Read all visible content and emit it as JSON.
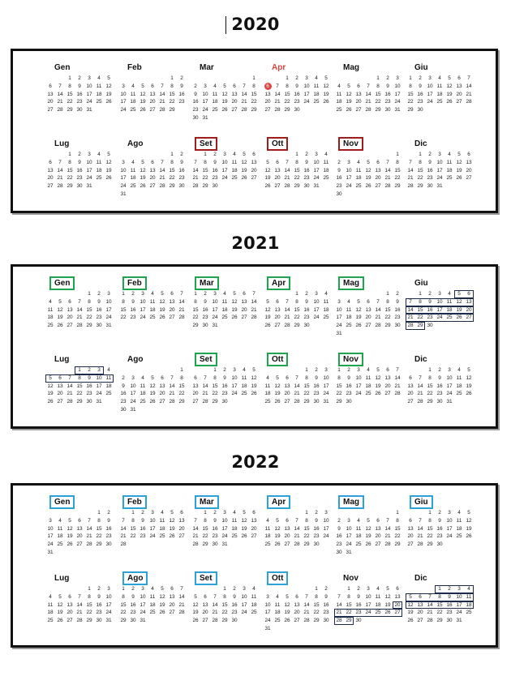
{
  "years": [
    {
      "year": "2020",
      "months": [
        {
          "name": "Gen",
          "style": "plain",
          "lead": 2,
          "days": 31
        },
        {
          "name": "Feb",
          "style": "plain",
          "lead": 5,
          "days": 29
        },
        {
          "name": "Mar",
          "style": "plain",
          "lead": 6,
          "days": 31
        },
        {
          "name": "Apr",
          "style": "text-red",
          "lead": 2,
          "days": 30,
          "today": 6
        },
        {
          "name": "Mag",
          "style": "plain",
          "lead": 4,
          "days": 31
        },
        {
          "name": "Giu",
          "style": "plain",
          "lead": 0,
          "days": 30
        },
        {
          "name": "Lug",
          "style": "plain",
          "lead": 2,
          "days": 31
        },
        {
          "name": "Ago",
          "style": "plain",
          "lead": 5,
          "days": 31
        },
        {
          "name": "Set",
          "style": "red",
          "lead": 1,
          "days": 30
        },
        {
          "name": "Ott",
          "style": "red",
          "lead": 3,
          "days": 31
        },
        {
          "name": "Nov",
          "style": "red",
          "lead": 6,
          "days": 30
        },
        {
          "name": "Dic",
          "style": "plain",
          "lead": 1,
          "days": 31
        }
      ]
    },
    {
      "year": "2021",
      "months": [
        {
          "name": "Gen",
          "style": "green",
          "lead": 4,
          "days": 31
        },
        {
          "name": "Feb",
          "style": "green",
          "lead": 0,
          "days": 28
        },
        {
          "name": "Mar",
          "style": "green",
          "lead": 0,
          "days": 31
        },
        {
          "name": "Apr",
          "style": "green",
          "lead": 3,
          "days": 30
        },
        {
          "name": "Mag",
          "style": "green",
          "lead": 5,
          "days": 31
        },
        {
          "name": "Giu",
          "style": "plain",
          "lead": 1,
          "days": 30
        },
        {
          "name": "Lug",
          "style": "plain",
          "lead": 3,
          "days": 31
        },
        {
          "name": "Ago",
          "style": "plain",
          "lead": 6,
          "days": 31
        },
        {
          "name": "Set",
          "style": "green",
          "lead": 2,
          "days": 30
        },
        {
          "name": "Ott",
          "style": "green",
          "lead": 4,
          "days": 31
        },
        {
          "name": "Nov",
          "style": "green",
          "lead": 0,
          "days": 30
        },
        {
          "name": "Dic",
          "style": "plain",
          "lead": 2,
          "days": 31
        }
      ]
    },
    {
      "year": "2022",
      "months": [
        {
          "name": "Gen",
          "style": "blue",
          "lead": 5,
          "days": 31
        },
        {
          "name": "Feb",
          "style": "blue",
          "lead": 1,
          "days": 28
        },
        {
          "name": "Mar",
          "style": "blue",
          "lead": 1,
          "days": 31
        },
        {
          "name": "Apr",
          "style": "blue",
          "lead": 4,
          "days": 30
        },
        {
          "name": "Mag",
          "style": "blue",
          "lead": 6,
          "days": 31
        },
        {
          "name": "Giu",
          "style": "blue",
          "lead": 2,
          "days": 30
        },
        {
          "name": "Lug",
          "style": "plain",
          "lead": 4,
          "days": 31
        },
        {
          "name": "Ago",
          "style": "blue",
          "lead": 0,
          "days": 31
        },
        {
          "name": "Set",
          "style": "blue",
          "lead": 3,
          "days": 30
        },
        {
          "name": "Ott",
          "style": "blue",
          "lead": 5,
          "days": 31
        },
        {
          "name": "Nov",
          "style": "plain",
          "lead": 1,
          "days": 30
        },
        {
          "name": "Dic",
          "style": "plain",
          "lead": 3,
          "days": 31
        }
      ]
    }
  ],
  "colors": {
    "red_box": "#a11d1d",
    "green_box": "#1fa44f",
    "blue_box": "#2ea1d6",
    "today_dot": "#e0443e",
    "highlight_box": "#1c2b4a"
  }
}
